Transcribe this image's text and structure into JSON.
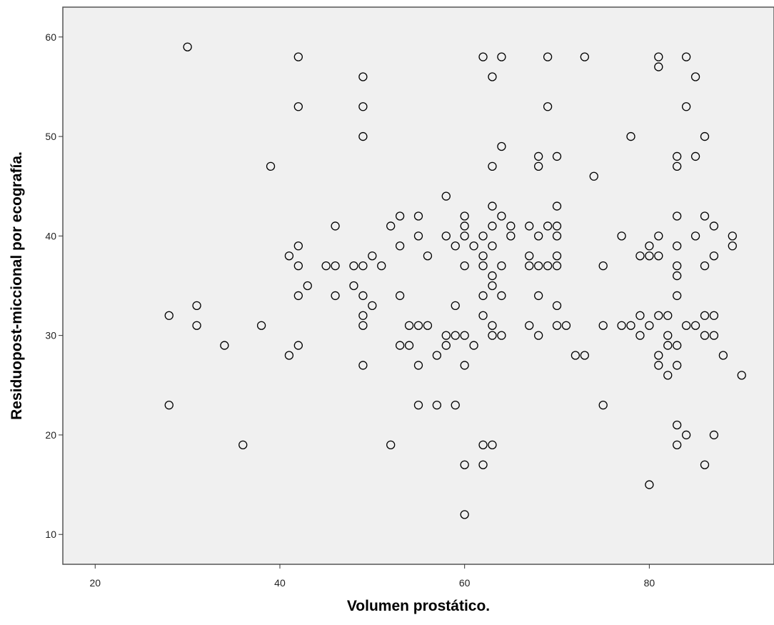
{
  "colors": {
    "plot_background": "#f0f0f0",
    "frame": "#555555",
    "marker_stroke": "#000000",
    "page_background": "#ffffff"
  },
  "chart_data": {
    "type": "scatter",
    "xlabel": "Volumen prostático.",
    "ylabel": "Residuopost-miccional por ecografía.",
    "xlim": [
      16.5,
      93.5
    ],
    "ylim": [
      7,
      63
    ],
    "xticks": [
      20,
      40,
      60,
      80
    ],
    "yticks": [
      10,
      20,
      30,
      40,
      50,
      60
    ],
    "grid": false,
    "legend": "none",
    "marker": "open-circle",
    "points": [
      {
        "x": 28,
        "y": 32
      },
      {
        "x": 28,
        "y": 23
      },
      {
        "x": 30,
        "y": 59
      },
      {
        "x": 31,
        "y": 33
      },
      {
        "x": 31,
        "y": 31
      },
      {
        "x": 34,
        "y": 29
      },
      {
        "x": 36,
        "y": 19
      },
      {
        "x": 38,
        "y": 31
      },
      {
        "x": 39,
        "y": 47
      },
      {
        "x": 41,
        "y": 38
      },
      {
        "x": 41,
        "y": 28
      },
      {
        "x": 42,
        "y": 58
      },
      {
        "x": 42,
        "y": 53
      },
      {
        "x": 42,
        "y": 39
      },
      {
        "x": 42,
        "y": 37
      },
      {
        "x": 42,
        "y": 34
      },
      {
        "x": 42,
        "y": 29
      },
      {
        "x": 43,
        "y": 35
      },
      {
        "x": 45,
        "y": 37
      },
      {
        "x": 46,
        "y": 41
      },
      {
        "x": 46,
        "y": 37
      },
      {
        "x": 46,
        "y": 34
      },
      {
        "x": 48,
        "y": 37
      },
      {
        "x": 48,
        "y": 35
      },
      {
        "x": 49,
        "y": 56
      },
      {
        "x": 49,
        "y": 53
      },
      {
        "x": 49,
        "y": 50
      },
      {
        "x": 49,
        "y": 37
      },
      {
        "x": 49,
        "y": 34
      },
      {
        "x": 49,
        "y": 32
      },
      {
        "x": 49,
        "y": 31
      },
      {
        "x": 49,
        "y": 27
      },
      {
        "x": 50,
        "y": 38
      },
      {
        "x": 50,
        "y": 33
      },
      {
        "x": 51,
        "y": 37
      },
      {
        "x": 52,
        "y": 41
      },
      {
        "x": 52,
        "y": 19
      },
      {
        "x": 53,
        "y": 42
      },
      {
        "x": 53,
        "y": 39
      },
      {
        "x": 53,
        "y": 34
      },
      {
        "x": 53,
        "y": 29
      },
      {
        "x": 54,
        "y": 31
      },
      {
        "x": 54,
        "y": 29
      },
      {
        "x": 55,
        "y": 42
      },
      {
        "x": 55,
        "y": 40
      },
      {
        "x": 55,
        "y": 31
      },
      {
        "x": 55,
        "y": 27
      },
      {
        "x": 55,
        "y": 23
      },
      {
        "x": 56,
        "y": 38
      },
      {
        "x": 56,
        "y": 31
      },
      {
        "x": 57,
        "y": 28
      },
      {
        "x": 57,
        "y": 23
      },
      {
        "x": 58,
        "y": 44
      },
      {
        "x": 58,
        "y": 40
      },
      {
        "x": 58,
        "y": 30
      },
      {
        "x": 58,
        "y": 29
      },
      {
        "x": 59,
        "y": 39
      },
      {
        "x": 59,
        "y": 33
      },
      {
        "x": 59,
        "y": 30
      },
      {
        "x": 59,
        "y": 23
      },
      {
        "x": 60,
        "y": 42
      },
      {
        "x": 60,
        "y": 41
      },
      {
        "x": 60,
        "y": 40
      },
      {
        "x": 60,
        "y": 37
      },
      {
        "x": 60,
        "y": 30
      },
      {
        "x": 60,
        "y": 27
      },
      {
        "x": 60,
        "y": 17
      },
      {
        "x": 60,
        "y": 12
      },
      {
        "x": 61,
        "y": 39
      },
      {
        "x": 61,
        "y": 29
      },
      {
        "x": 62,
        "y": 58
      },
      {
        "x": 62,
        "y": 40
      },
      {
        "x": 62,
        "y": 38
      },
      {
        "x": 62,
        "y": 37
      },
      {
        "x": 62,
        "y": 34
      },
      {
        "x": 62,
        "y": 32
      },
      {
        "x": 62,
        "y": 19
      },
      {
        "x": 62,
        "y": 17
      },
      {
        "x": 63,
        "y": 56
      },
      {
        "x": 63,
        "y": 47
      },
      {
        "x": 63,
        "y": 43
      },
      {
        "x": 63,
        "y": 41
      },
      {
        "x": 63,
        "y": 39
      },
      {
        "x": 63,
        "y": 36
      },
      {
        "x": 63,
        "y": 35
      },
      {
        "x": 63,
        "y": 31
      },
      {
        "x": 63,
        "y": 30
      },
      {
        "x": 63,
        "y": 19
      },
      {
        "x": 64,
        "y": 58
      },
      {
        "x": 64,
        "y": 49
      },
      {
        "x": 64,
        "y": 42
      },
      {
        "x": 64,
        "y": 37
      },
      {
        "x": 64,
        "y": 34
      },
      {
        "x": 64,
        "y": 30
      },
      {
        "x": 65,
        "y": 41
      },
      {
        "x": 65,
        "y": 40
      },
      {
        "x": 67,
        "y": 41
      },
      {
        "x": 67,
        "y": 38
      },
      {
        "x": 67,
        "y": 37
      },
      {
        "x": 67,
        "y": 31
      },
      {
        "x": 68,
        "y": 48
      },
      {
        "x": 68,
        "y": 47
      },
      {
        "x": 68,
        "y": 40
      },
      {
        "x": 68,
        "y": 37
      },
      {
        "x": 68,
        "y": 34
      },
      {
        "x": 68,
        "y": 30
      },
      {
        "x": 69,
        "y": 58
      },
      {
        "x": 69,
        "y": 53
      },
      {
        "x": 69,
        "y": 41
      },
      {
        "x": 69,
        "y": 37
      },
      {
        "x": 70,
        "y": 48
      },
      {
        "x": 70,
        "y": 43
      },
      {
        "x": 70,
        "y": 41
      },
      {
        "x": 70,
        "y": 40
      },
      {
        "x": 70,
        "y": 38
      },
      {
        "x": 70,
        "y": 37
      },
      {
        "x": 70,
        "y": 33
      },
      {
        "x": 70,
        "y": 31
      },
      {
        "x": 71,
        "y": 31
      },
      {
        "x": 72,
        "y": 28
      },
      {
        "x": 73,
        "y": 58
      },
      {
        "x": 73,
        "y": 28
      },
      {
        "x": 74,
        "y": 46
      },
      {
        "x": 75,
        "y": 37
      },
      {
        "x": 75,
        "y": 31
      },
      {
        "x": 75,
        "y": 23
      },
      {
        "x": 77,
        "y": 40
      },
      {
        "x": 77,
        "y": 31
      },
      {
        "x": 78,
        "y": 50
      },
      {
        "x": 78,
        "y": 31
      },
      {
        "x": 79,
        "y": 38
      },
      {
        "x": 79,
        "y": 32
      },
      {
        "x": 79,
        "y": 30
      },
      {
        "x": 80,
        "y": 39
      },
      {
        "x": 80,
        "y": 38
      },
      {
        "x": 80,
        "y": 31
      },
      {
        "x": 80,
        "y": 15
      },
      {
        "x": 81,
        "y": 58
      },
      {
        "x": 81,
        "y": 57
      },
      {
        "x": 81,
        "y": 40
      },
      {
        "x": 81,
        "y": 38
      },
      {
        "x": 81,
        "y": 32
      },
      {
        "x": 81,
        "y": 28
      },
      {
        "x": 81,
        "y": 27
      },
      {
        "x": 82,
        "y": 32
      },
      {
        "x": 82,
        "y": 30
      },
      {
        "x": 82,
        "y": 29
      },
      {
        "x": 82,
        "y": 26
      },
      {
        "x": 83,
        "y": 48
      },
      {
        "x": 83,
        "y": 47
      },
      {
        "x": 83,
        "y": 42
      },
      {
        "x": 83,
        "y": 39
      },
      {
        "x": 83,
        "y": 37
      },
      {
        "x": 83,
        "y": 36
      },
      {
        "x": 83,
        "y": 34
      },
      {
        "x": 83,
        "y": 29
      },
      {
        "x": 83,
        "y": 27
      },
      {
        "x": 83,
        "y": 21
      },
      {
        "x": 83,
        "y": 19
      },
      {
        "x": 84,
        "y": 58
      },
      {
        "x": 84,
        "y": 53
      },
      {
        "x": 84,
        "y": 31
      },
      {
        "x": 84,
        "y": 20
      },
      {
        "x": 85,
        "y": 56
      },
      {
        "x": 85,
        "y": 48
      },
      {
        "x": 85,
        "y": 40
      },
      {
        "x": 85,
        "y": 31
      },
      {
        "x": 86,
        "y": 50
      },
      {
        "x": 86,
        "y": 42
      },
      {
        "x": 86,
        "y": 37
      },
      {
        "x": 86,
        "y": 32
      },
      {
        "x": 86,
        "y": 30
      },
      {
        "x": 86,
        "y": 17
      },
      {
        "x": 87,
        "y": 41
      },
      {
        "x": 87,
        "y": 38
      },
      {
        "x": 87,
        "y": 32
      },
      {
        "x": 87,
        "y": 30
      },
      {
        "x": 87,
        "y": 20
      },
      {
        "x": 88,
        "y": 28
      },
      {
        "x": 89,
        "y": 40
      },
      {
        "x": 89,
        "y": 39
      },
      {
        "x": 90,
        "y": 26
      }
    ]
  }
}
